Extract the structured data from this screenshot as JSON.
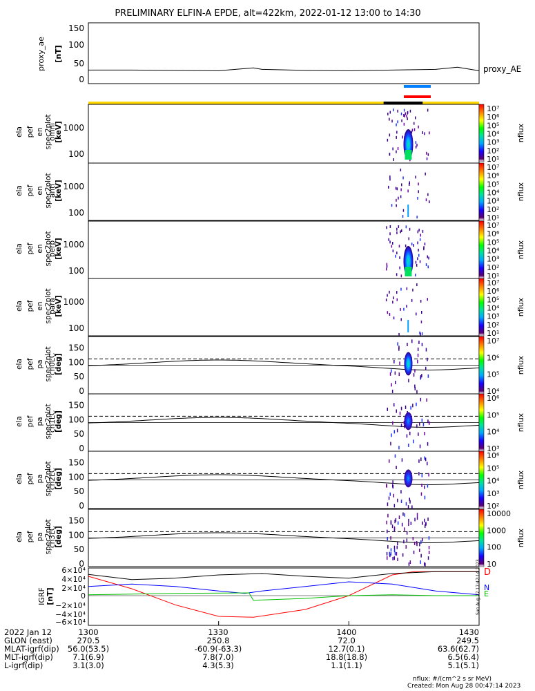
{
  "title": "PRELIMINARY ELFIN-A EPDE, alt=422km, 2022-01-12 13:00 to 14:30",
  "ae_panel": {
    "ylabel": "proxy_ae",
    "yunit": "[nT]",
    "yticks": [
      "150",
      "100",
      "50",
      "0"
    ],
    "series_label": "proxy_AE"
  },
  "spec_panels": [
    {
      "ylabel_lines": [
        "ela",
        "pef",
        "en",
        "spec2plot",
        "omni",
        "[keV]"
      ],
      "yticks": [
        "1000",
        "100"
      ],
      "zlabel": "nflux"
    },
    {
      "ylabel_lines": [
        "ela",
        "pef",
        "en",
        "spec2plot",
        "anti",
        "[keV]"
      ],
      "yticks": [
        "1000",
        "100"
      ],
      "zlabel": "nflux"
    },
    {
      "ylabel_lines": [
        "ela",
        "pef",
        "en",
        "spec2plot",
        "perp",
        "[keV]"
      ],
      "yticks": [
        "1000",
        "100"
      ],
      "zlabel": "nflux"
    },
    {
      "ylabel_lines": [
        "ela",
        "pef",
        "en",
        "spec2plot",
        "para",
        "[keV]"
      ],
      "yticks": [
        "1000",
        "100"
      ],
      "zlabel": "nflux"
    }
  ],
  "pa_panels": [
    {
      "ylabel_lines": [
        "ela",
        "pef",
        "pa",
        "spec2plot",
        "ch0LC",
        "[deg]"
      ],
      "yticks": [
        "150",
        "100",
        "50",
        "0"
      ],
      "zlabel": "nflux"
    },
    {
      "ylabel_lines": [
        "ela",
        "pef",
        "pa",
        "spec2plot",
        "ch1LC",
        "[deg]"
      ],
      "yticks": [
        "150",
        "100",
        "50",
        "0"
      ],
      "zlabel": "nflux"
    },
    {
      "ylabel_lines": [
        "ela",
        "pef",
        "pa",
        "spec2plot",
        "ch2LC",
        "[deg]"
      ],
      "yticks": [
        "150",
        "100",
        "50",
        "0"
      ],
      "zlabel": "nflux"
    },
    {
      "ylabel_lines": [
        "ela",
        "pef",
        "pa",
        "spec2plot",
        "ch3LC",
        "[deg]"
      ],
      "yticks": [
        "150",
        "100",
        "50",
        "0"
      ],
      "zlabel": "nflux"
    }
  ],
  "spec_colorbar_ticks": [
    "10⁷",
    "10⁶",
    "10⁵",
    "10⁴",
    "10³",
    "10²",
    "10¹"
  ],
  "pa_colorbars": [
    {
      "ticks": [
        "10⁷",
        "10⁶",
        "10⁵",
        "10⁴"
      ]
    },
    {
      "ticks": [
        "10⁶",
        "10⁵",
        "10⁴",
        "10³"
      ]
    },
    {
      "ticks": [
        "10⁶",
        "10⁵",
        "10⁴",
        "10³",
        "10²"
      ]
    },
    {
      "ticks": [
        "10000",
        "1000",
        "100",
        "10"
      ]
    }
  ],
  "igrf_panel": {
    "ylabel": "IGRF",
    "yunit": "[nT]",
    "yticks": [
      "6×10⁴",
      "4×10⁴",
      "2×10⁴",
      "0",
      "−2×10⁴",
      "−4×10⁴",
      "−6×10⁴"
    ],
    "component_labels": [
      "D",
      "N",
      "E"
    ],
    "component_colors": [
      "#ff0000",
      "#0000ff",
      "#00c000"
    ]
  },
  "footer_rows": [
    {
      "label": "2022 Jan 12",
      "values": [
        "1300",
        "1330",
        "1400",
        "1430"
      ]
    },
    {
      "label": "GLON (east)",
      "values": [
        "270.5",
        "250.8",
        "72.0",
        "249.5"
      ]
    },
    {
      "label": "MLAT-igrf(dip)",
      "values": [
        "56.0(53.5)",
        "-60.9(-63.3)",
        "12.7(0.1)",
        "63.6(62.7)"
      ]
    },
    {
      "label": "MLT-igrf(dip)",
      "values": [
        "7.1(6.9)",
        "7.8(7.0)",
        "18.8(18.8)",
        "6.5(6.4)"
      ]
    },
    {
      "label": "L-igrf(dip)",
      "values": [
        "3.1(3.0)",
        "4.3(5.3)",
        "1.1(1.1)",
        "5.1(5.1)"
      ]
    }
  ],
  "units_note": "nflux: #/(cm^2 s sr MeV)",
  "created_note": "Created: Mon Aug 28 00:47:14 2023",
  "side_timestamp": "Sun Aug 27 17:47:14 2023",
  "chart_data": {
    "type": "heatmap",
    "title": "PRELIMINARY ELFIN-A EPDE, alt=422km, 2022-01-12 13:00 to 14:30",
    "x_ticks_minutes": [
      0,
      30,
      60,
      90
    ],
    "x_tick_labels": [
      "1300",
      "1330",
      "1400",
      "1430"
    ],
    "proxy_ae": {
      "ylim": [
        0,
        150
      ],
      "x_min": [
        0,
        10,
        20,
        30,
        38,
        40,
        50,
        60,
        70,
        80,
        85,
        90
      ],
      "y": [
        30,
        30,
        29,
        28,
        36,
        32,
        29,
        28,
        30,
        32,
        38,
        28
      ]
    },
    "energy_ylim_kev": [
      60,
      7000
    ],
    "pitch_ylim_deg": [
      0,
      180
    ],
    "loss_cone_dashed_deg": 112,
    "pa_reference_line_deg": 90,
    "science_zone_bar": {
      "x_start_min": 68,
      "x_end_min": 77
    },
    "igrf_ylim": [
      -60000,
      60000
    ],
    "igrf_series": [
      {
        "name": "D",
        "color": "#ff0000",
        "x_min": [
          0,
          10,
          20,
          30,
          38,
          50,
          60,
          70,
          75,
          80,
          90
        ],
        "y": [
          42000,
          15000,
          -20000,
          -45000,
          -47000,
          -30000,
          0,
          45000,
          52000,
          52000,
          52000
        ]
      },
      {
        "name": "N",
        "color": "#0000ff",
        "x_min": [
          0,
          10,
          20,
          30,
          36,
          40,
          50,
          60,
          70,
          80,
          90
        ],
        "y": [
          20000,
          25000,
          20000,
          10000,
          5000,
          10000,
          20000,
          30000,
          25000,
          10000,
          2000
        ]
      },
      {
        "name": "E",
        "color": "#00c000",
        "x_min": [
          0,
          20,
          37,
          38,
          50,
          60,
          70,
          80,
          90
        ],
        "y": [
          2000,
          5000,
          6000,
          -10000,
          -6000,
          0,
          2000,
          0,
          0
        ]
      },
      {
        "name": "",
        "color": "#000000",
        "x_min": [
          0,
          10,
          20,
          30,
          40,
          50,
          60,
          70,
          80,
          90
        ],
        "y": [
          46000,
          35000,
          38000,
          45000,
          48000,
          42000,
          38000,
          48000,
          52000,
          52000
        ]
      }
    ]
  }
}
